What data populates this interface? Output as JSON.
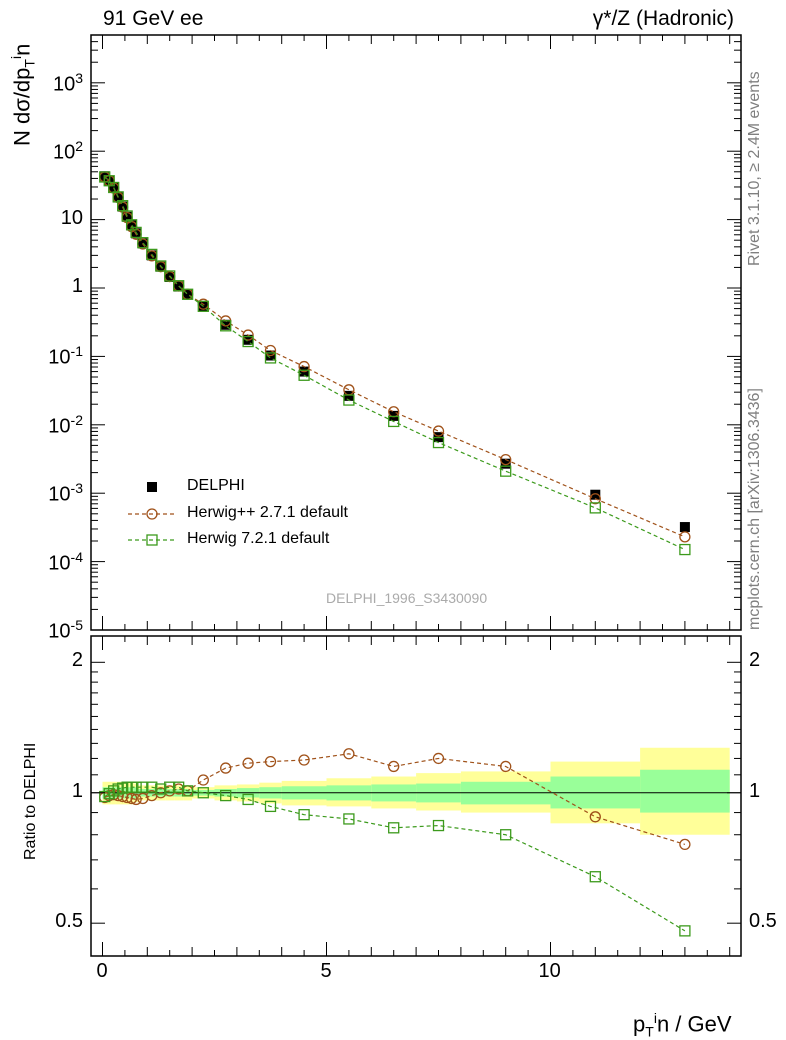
{
  "header": {
    "left_label": "91 GeV ee",
    "right_label": "γ*/Z (Hadronic)"
  },
  "side_text": {
    "rivet": "Rivet 3.1.10, ≥ 2.4M events",
    "mcplots": "mcplots.cern.ch [arXiv:1306.3436]"
  },
  "watermark": "DELPHI_1996_S3430090",
  "axes": {
    "ylabel_main": "N dσ/dp_T^i n",
    "ylabel_ratio": "Ratio to DELPHI",
    "xlabel": "p_T^i n / GeV"
  },
  "colors": {
    "data": "#000000",
    "herwigpp": "#a0521a",
    "herwig7": "#3c9a1c",
    "band_inner": "#99ff99",
    "band_outer": "#ffff99"
  },
  "chart_data": [
    {
      "type": "scatter",
      "panel": "main",
      "yscale": "log",
      "ylim": [
        1e-05,
        5000
      ],
      "xlim": [
        -0.3,
        14.4
      ],
      "y_ticks": [
        "10^3",
        "10^2",
        "10",
        "1",
        "10^-1",
        "10^-2",
        "10^-3",
        "10^-4",
        "10^-5"
      ],
      "x": [
        0.05,
        0.15,
        0.25,
        0.35,
        0.45,
        0.55,
        0.65,
        0.75,
        0.9,
        1.1,
        1.3,
        1.5,
        1.7,
        1.9,
        2.25,
        2.75,
        3.25,
        3.75,
        4.5,
        5.5,
        6.5,
        7.5,
        9.0,
        11.0,
        13.0
      ],
      "legend": [
        "DELPHI",
        "Herwig++ 2.7.1 default",
        "Herwig 7.2.1 default"
      ],
      "legend_position": "bottom-left",
      "series": [
        {
          "name": "DELPHI",
          "marker": "filled-square",
          "values": [
            43,
            37,
            29,
            21,
            15.5,
            11,
            8.2,
            6.3,
            4.5,
            3.0,
            2.05,
            1.45,
            1.05,
            0.8,
            0.54,
            0.29,
            0.175,
            0.103,
            0.06,
            0.0265,
            0.0135,
            0.0066,
            0.0027,
            0.00095,
            0.00032
          ]
        },
        {
          "name": "Herwig++ 2.7.1 default",
          "marker": "open-circle",
          "line": "dashed",
          "values": [
            42,
            37,
            29,
            21,
            15.2,
            10.7,
            7.9,
            6.1,
            4.4,
            2.95,
            2.05,
            1.47,
            1.07,
            0.81,
            0.58,
            0.33,
            0.205,
            0.122,
            0.071,
            0.0325,
            0.0155,
            0.0081,
            0.0031,
            0.00083,
            0.00023
          ]
        },
        {
          "name": "Herwig 7.2.1 default",
          "marker": "open-square",
          "line": "dashed",
          "values": [
            42,
            37,
            29.5,
            21.5,
            16,
            11.3,
            8.4,
            6.5,
            4.6,
            3.1,
            2.1,
            1.5,
            1.08,
            0.81,
            0.54,
            0.28,
            0.165,
            0.095,
            0.053,
            0.023,
            0.0112,
            0.0055,
            0.0021,
            0.00061,
            0.00015
          ]
        }
      ]
    },
    {
      "type": "scatter",
      "panel": "ratio",
      "yscale": "log",
      "ylim": [
        0.42,
        2.3
      ],
      "xlim": [
        -0.3,
        14.4
      ],
      "ylabel": "Ratio to DELPHI",
      "xlabel": "p_T^i n / GeV",
      "y_ticks": [
        "0.5",
        "1",
        "2"
      ],
      "x_ticks": [
        "0",
        "5",
        "10"
      ],
      "x": [
        0.05,
        0.15,
        0.25,
        0.35,
        0.45,
        0.55,
        0.65,
        0.75,
        0.9,
        1.1,
        1.3,
        1.5,
        1.7,
        1.9,
        2.25,
        2.75,
        3.25,
        3.75,
        4.5,
        5.5,
        6.5,
        7.5,
        9.0,
        11.0,
        13.0
      ],
      "series": [
        {
          "name": "Herwig++ 2.7.1 default",
          "values": [
            0.975,
            0.985,
            0.99,
            0.985,
            0.98,
            0.975,
            0.97,
            0.965,
            0.97,
            0.985,
            1.0,
            1.01,
            1.02,
            1.01,
            1.07,
            1.14,
            1.17,
            1.18,
            1.19,
            1.23,
            1.15,
            1.2,
            1.15,
            0.88,
            0.76
          ]
        },
        {
          "name": "Herwig 7.2.1 default",
          "values": [
            0.98,
            0.995,
            1.01,
            1.02,
            1.025,
            1.03,
            1.03,
            1.03,
            1.03,
            1.03,
            1.02,
            1.03,
            1.03,
            1.01,
            1.0,
            0.985,
            0.965,
            0.93,
            0.89,
            0.87,
            0.83,
            0.84,
            0.8,
            0.64,
            0.48
          ]
        }
      ],
      "uncertainty_bins": [
        {
          "x": [
            0.0,
            0.1
          ],
          "inner": [
            0.97,
            1.03
          ],
          "outer": [
            0.94,
            1.06
          ]
        },
        {
          "x": [
            0.1,
            0.2
          ],
          "inner": [
            0.97,
            1.03
          ],
          "outer": [
            0.94,
            1.06
          ]
        },
        {
          "x": [
            0.2,
            0.3
          ],
          "inner": [
            0.97,
            1.03
          ],
          "outer": [
            0.94,
            1.06
          ]
        },
        {
          "x": [
            0.3,
            0.4
          ],
          "inner": [
            0.97,
            1.03
          ],
          "outer": [
            0.94,
            1.06
          ]
        },
        {
          "x": [
            0.4,
            0.5
          ],
          "inner": [
            0.97,
            1.03
          ],
          "outer": [
            0.94,
            1.06
          ]
        },
        {
          "x": [
            0.5,
            0.6
          ],
          "inner": [
            0.97,
            1.03
          ],
          "outer": [
            0.94,
            1.06
          ]
        },
        {
          "x": [
            0.6,
            0.7
          ],
          "inner": [
            0.97,
            1.03
          ],
          "outer": [
            0.94,
            1.06
          ]
        },
        {
          "x": [
            0.7,
            0.8
          ],
          "inner": [
            0.97,
            1.03
          ],
          "outer": [
            0.95,
            1.05
          ]
        },
        {
          "x": [
            0.8,
            1.0
          ],
          "inner": [
            0.98,
            1.02
          ],
          "outer": [
            0.96,
            1.04
          ]
        },
        {
          "x": [
            1.0,
            1.2
          ],
          "inner": [
            0.98,
            1.02
          ],
          "outer": [
            0.96,
            1.04
          ]
        },
        {
          "x": [
            1.2,
            1.4
          ],
          "inner": [
            0.98,
            1.02
          ],
          "outer": [
            0.96,
            1.04
          ]
        },
        {
          "x": [
            1.4,
            1.6
          ],
          "inner": [
            0.98,
            1.02
          ],
          "outer": [
            0.96,
            1.04
          ]
        },
        {
          "x": [
            1.6,
            1.8
          ],
          "inner": [
            0.98,
            1.02
          ],
          "outer": [
            0.96,
            1.04
          ]
        },
        {
          "x": [
            1.8,
            2.0
          ],
          "inner": [
            0.98,
            1.02
          ],
          "outer": [
            0.96,
            1.04
          ]
        },
        {
          "x": [
            2.0,
            2.5
          ],
          "inner": [
            0.985,
            1.015
          ],
          "outer": [
            0.97,
            1.03
          ]
        },
        {
          "x": [
            2.5,
            3.0
          ],
          "inner": [
            0.98,
            1.02
          ],
          "outer": [
            0.96,
            1.04
          ]
        },
        {
          "x": [
            3.0,
            3.5
          ],
          "inner": [
            0.975,
            1.025
          ],
          "outer": [
            0.955,
            1.045
          ]
        },
        {
          "x": [
            3.5,
            4.0
          ],
          "inner": [
            0.97,
            1.03
          ],
          "outer": [
            0.945,
            1.055
          ]
        },
        {
          "x": [
            4.0,
            5.0
          ],
          "inner": [
            0.965,
            1.035
          ],
          "outer": [
            0.935,
            1.065
          ]
        },
        {
          "x": [
            5.0,
            6.0
          ],
          "inner": [
            0.96,
            1.04
          ],
          "outer": [
            0.93,
            1.08
          ]
        },
        {
          "x": [
            6.0,
            7.0
          ],
          "inner": [
            0.955,
            1.045
          ],
          "outer": [
            0.92,
            1.09
          ]
        },
        {
          "x": [
            7.0,
            8.0
          ],
          "inner": [
            0.95,
            1.05
          ],
          "outer": [
            0.91,
            1.11
          ]
        },
        {
          "x": [
            8.0,
            10.0
          ],
          "inner": [
            0.94,
            1.06
          ],
          "outer": [
            0.9,
            1.12
          ]
        },
        {
          "x": [
            10.0,
            12.0
          ],
          "inner": [
            0.92,
            1.09
          ],
          "outer": [
            0.85,
            1.18
          ]
        },
        {
          "x": [
            12.0,
            14.0
          ],
          "inner": [
            0.9,
            1.13
          ],
          "outer": [
            0.8,
            1.27
          ]
        }
      ]
    }
  ]
}
